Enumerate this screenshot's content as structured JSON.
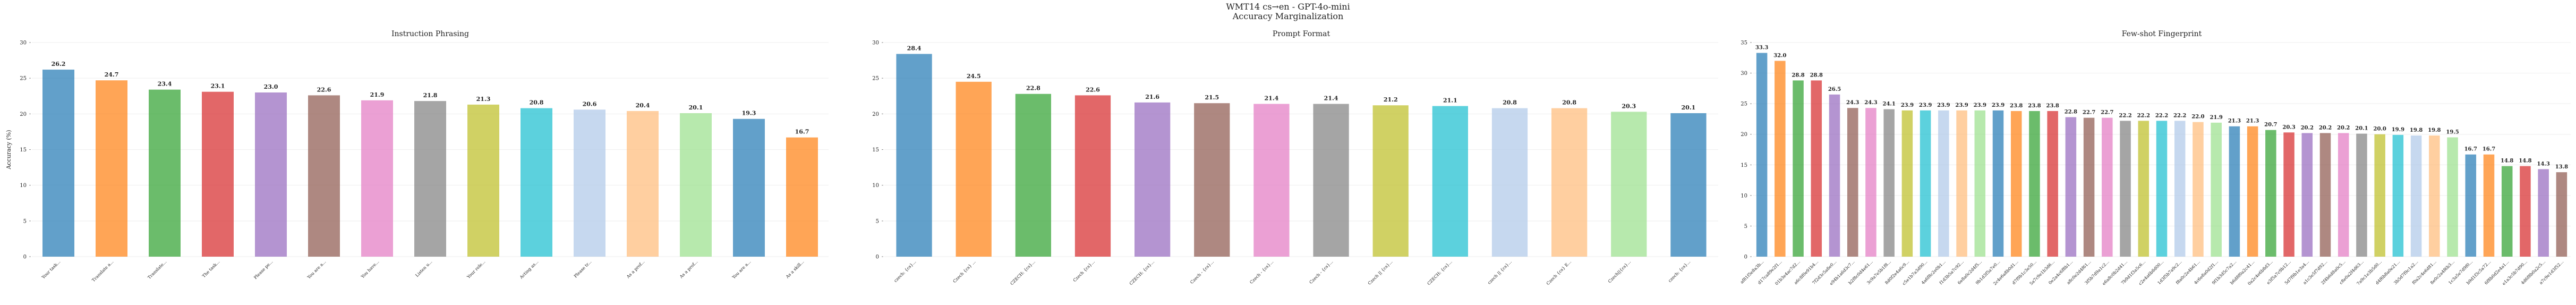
{
  "title": "WMT14 cs→en - GPT-4o-mini",
  "subtitle": "Accuracy Marginalization",
  "chart_data": [
    {
      "type": "bar",
      "title": "Instruction Phrasing",
      "ylabel": "Accuracy (%)",
      "categories": [
        "Your task...",
        "Translate a...",
        "Translate...",
        "The task...",
        "Please pe...",
        "You are a...",
        "You have...",
        "Listen u...",
        "Your role...",
        "Acting as...",
        "Please tr...",
        "As a prof...",
        "As a prof...",
        "You are a...",
        "As a skill..."
      ],
      "values": [
        26.2,
        24.7,
        23.4,
        23.1,
        23.0,
        22.6,
        21.9,
        21.8,
        21.3,
        20.8,
        20.6,
        20.4,
        20.1,
        19.3,
        16.7
      ],
      "value_labels": [
        "26.2",
        "24.7",
        "23.4",
        "23.1",
        "23.0",
        "22.6",
        "21.9",
        "21.8",
        "21.3",
        "20.8",
        "20.6",
        "20.4",
        "20.1",
        "19.3",
        "16.7"
      ],
      "colors": [
        "#1f77b4",
        "#ff7f0e",
        "#2ca02c",
        "#d62728",
        "#9467bd",
        "#8c564b",
        "#e377c2",
        "#7f7f7f",
        "#bcbd22",
        "#17becf",
        "#aec7e8",
        "#ffbb78",
        "#98df8a"
      ],
      "ylim": [
        0,
        30
      ],
      "yticks": [
        0,
        5,
        10,
        15,
        20,
        25,
        30
      ],
      "grid": true
    },
    {
      "type": "bar",
      "title": "Prompt Format",
      "categories": [
        "czech: {cs}...",
        "Czech {cs} ...",
        "CZECH: {cs}...",
        "Czech {cs}...",
        "CZECH: {cs}...",
        "Czech - {cs}...",
        "Czech - {cs}...",
        "Czech - {cs}...",
        "Czech || {cs}...",
        "CZECH: {cs}...",
        "czech || {cs}...",
        "Czech {cs} E...",
        "Czech||{cs}...",
        "czech: {cs}..."
      ],
      "values": [
        28.4,
        24.5,
        22.8,
        22.6,
        21.6,
        21.5,
        21.4,
        21.4,
        21.2,
        21.1,
        20.8,
        20.8,
        20.3,
        20.1
      ],
      "value_labels": [
        "28.4",
        "24.5",
        "22.8",
        "22.6",
        "21.6",
        "21.5",
        "21.4",
        "21.4",
        "21.2",
        "21.1",
        "20.8",
        "20.8",
        "20.3",
        "20.1"
      ],
      "colors": [
        "#1f77b4",
        "#ff7f0e",
        "#2ca02c",
        "#d62728",
        "#9467bd",
        "#8c564b",
        "#e377c2",
        "#7f7f7f",
        "#bcbd22",
        "#17becf",
        "#aec7e8",
        "#ffbb78",
        "#98df8a"
      ],
      "ylim": [
        0,
        30
      ],
      "yticks": [
        0,
        5,
        10,
        15,
        20,
        25,
        30
      ],
      "grid": true
    },
    {
      "type": "bar",
      "title": "Few-shot Fingerprint",
      "categories": [
        "af81f5e8a3b...",
        "d17ca89e2f1...",
        "01b3e4ac7d2...",
        "a6c8f0e91b4...",
        "7f2d3c5a8e0...",
        "e94b1a6d3c7...",
        "b2f8c0d4e61...",
        "3c9a7e5b1f8...",
        "8d0f2e4a6c9...",
        "c5e1b7a3d90...",
        "4a6f8c2e0b1...",
        "f1d3b5a7c92...",
        "6e8a0c2d4f5...",
        "9b1d3f5a7e0...",
        "2c4e6a8b0d1...",
        "d7f9b1c3e50...",
        "5a7c9e1b3d6...",
        "0e2a4c6f8b1...",
        "a8c0e2d4f61...",
        "3f5b7d9a1c2...",
        "e6a8c0b2d41...",
        "7b9d1f3a5c6...",
        "c2e4a6b8d00...",
        "1d3f5b7a9c2...",
        "f8a0c2e4b61...",
        "4c6e8a0d2f1...",
        "9f1b3d5c7a2...",
        "b6d8f0a2c41...",
        "0a2c4e6b8d3...",
        "e3f5a7c9b12...",
        "5d7f9b1e3a4...",
        "a1c3e5f7d92...",
        "2f4b6d8a0c5...",
        "c8e0a2f4d63...",
        "7a9c1e3b5d0...",
        "d4f6b8a0e21...",
        "3b5d7f9c1a2...",
        "f0a2c4e6d81...",
        "8e0c2a4f6b3...",
        "1c3a5e7d9f0...",
        "b9d1f3c5a72...",
        "6f8b0d2e4a1...",
        "e1a3c5b7d90...",
        "4d6f8b0a2c5...",
        "a7c9e1d3f52..."
      ],
      "values": [
        33.3,
        32.0,
        28.8,
        28.8,
        26.5,
        24.3,
        24.3,
        24.1,
        23.9,
        23.9,
        23.9,
        23.9,
        23.9,
        23.9,
        23.8,
        23.8,
        23.8,
        22.8,
        22.7,
        22.7,
        22.2,
        22.2,
        22.2,
        22.2,
        22.0,
        21.9,
        21.3,
        21.3,
        20.7,
        20.3,
        20.2,
        20.2,
        20.2,
        20.1,
        20.0,
        19.9,
        19.8,
        19.8,
        19.5,
        16.7,
        16.7,
        14.8,
        14.8,
        14.3,
        13.8
      ],
      "value_labels": [
        "33.3",
        "32.0",
        "28.8",
        "28.8",
        "26.5",
        "24.3",
        "24.3",
        "24.1",
        "23.9",
        "23.9",
        "23.9",
        "23.9",
        "23.9",
        "23.9",
        "23.8",
        "23.8",
        "23.8",
        "22.8",
        "22.7",
        "22.7",
        "22.2",
        "22.2",
        "22.2",
        "22.2",
        "22.0",
        "21.9",
        "21.3",
        "21.3",
        "20.7",
        "20.3",
        "20.2",
        "20.2",
        "20.2",
        "20.1",
        "20.0",
        "19.9",
        "19.8",
        "19.8",
        "19.5",
        "16.7",
        "16.7",
        "14.8",
        "14.8",
        "14.3",
        "13.8"
      ],
      "colors": [
        "#1f77b4",
        "#ff7f0e",
        "#2ca02c",
        "#d62728",
        "#9467bd",
        "#8c564b",
        "#e377c2",
        "#7f7f7f",
        "#bcbd22",
        "#17becf",
        "#aec7e8",
        "#ffbb78",
        "#98df8a"
      ],
      "ylim": [
        0,
        35
      ],
      "yticks": [
        0,
        5,
        10,
        15,
        20,
        25,
        30,
        35
      ],
      "grid": true
    }
  ]
}
